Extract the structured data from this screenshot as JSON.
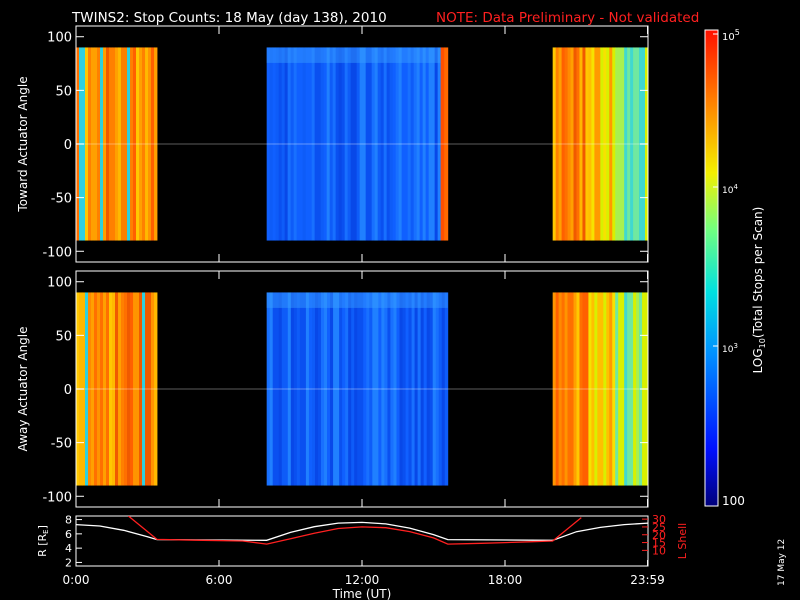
{
  "title": {
    "main": "TWINS2: Stop Counts: 18 May (day 138), 2010",
    "note": "NOTE: Data Preliminary - Not validated"
  },
  "date_stamp": "17 May 12",
  "colors": {
    "background": "#000000",
    "axes": "#ffffff",
    "note": "#ff2020",
    "l_shell": "#ff2020",
    "radius": "#ffffff"
  },
  "chart_data": [
    {
      "type": "heatmap",
      "name": "toward",
      "ylabel": "Toward Actuator Angle",
      "ylim": [
        -110,
        110
      ],
      "yticks": [
        100,
        50,
        0,
        -50,
        -100
      ],
      "data_ylim": [
        -90,
        90
      ],
      "xlim": [
        0,
        24
      ],
      "segments": [
        {
          "start": 0.0,
          "end": 3.4,
          "level": "high"
        },
        {
          "start": 8.0,
          "end": 15.3,
          "level": "low"
        },
        {
          "start": 15.3,
          "end": 15.6,
          "level": "peak"
        },
        {
          "start": 20.0,
          "end": 24.0,
          "level": "high_fading"
        }
      ]
    },
    {
      "type": "heatmap",
      "name": "away",
      "ylabel": "Away Actuator Angle",
      "ylim": [
        -110,
        110
      ],
      "yticks": [
        100,
        50,
        0,
        -50,
        -100
      ],
      "data_ylim": [
        -90,
        90
      ],
      "xlim": [
        0,
        24
      ],
      "segments": [
        {
          "start": 0.0,
          "end": 3.4,
          "level": "high"
        },
        {
          "start": 8.0,
          "end": 15.6,
          "level": "low"
        },
        {
          "start": 20.0,
          "end": 24.0,
          "level": "high_fading"
        }
      ]
    },
    {
      "type": "line",
      "name": "orbit",
      "xlabel": "Time (UT)",
      "xlim": [
        0,
        24
      ],
      "xticks": [
        0,
        6,
        12,
        18,
        23.98
      ],
      "xticklabels": [
        "0:00",
        "6:00",
        "12:00",
        "18:00",
        "23:59"
      ],
      "y_left": {
        "label": "R [R",
        "label_sub": "E",
        "label_end": "]",
        "ylim": [
          1.5,
          8.5
        ],
        "ticks": [
          8,
          6,
          4,
          2
        ]
      },
      "y_right": {
        "label": "L Shell",
        "ylim": [
          0,
          32
        ],
        "ticks": [
          30,
          25,
          20,
          15,
          10
        ]
      },
      "series": [
        {
          "axis": "left",
          "x": [
            0,
            1,
            2,
            3,
            3.4,
            8,
            9,
            10,
            11,
            12,
            13,
            14,
            15,
            15.6,
            20,
            21,
            22,
            23,
            24
          ],
          "y": [
            7.3,
            7.1,
            6.5,
            5.6,
            5.2,
            5.1,
            6.2,
            7.0,
            7.5,
            7.6,
            7.4,
            6.8,
            5.9,
            5.2,
            5.1,
            6.3,
            6.9,
            7.3,
            7.5
          ]
        },
        {
          "axis": "right",
          "x": [
            2.2,
            3.4,
            5,
            7,
            8,
            9,
            10,
            11,
            12,
            13,
            14,
            15,
            15.6,
            17,
            18,
            19,
            20,
            21.2
          ],
          "y": [
            32,
            17,
            16.5,
            16,
            14,
            17.5,
            21,
            24,
            25,
            24.5,
            22,
            18,
            14,
            14.5,
            15,
            15.5,
            16,
            31
          ]
        }
      ]
    }
  ],
  "colorbar": {
    "label_prefix": "LOG",
    "label_sub": "10",
    "label_suffix": "(Total Stops per Scan)",
    "min_label": "100",
    "tick_1e3": "10",
    "tick_1e3_exp": "3",
    "tick_1e4": "10",
    "tick_1e4_exp": "4",
    "tick_1e5": "10",
    "tick_1e5_exp": "5"
  }
}
